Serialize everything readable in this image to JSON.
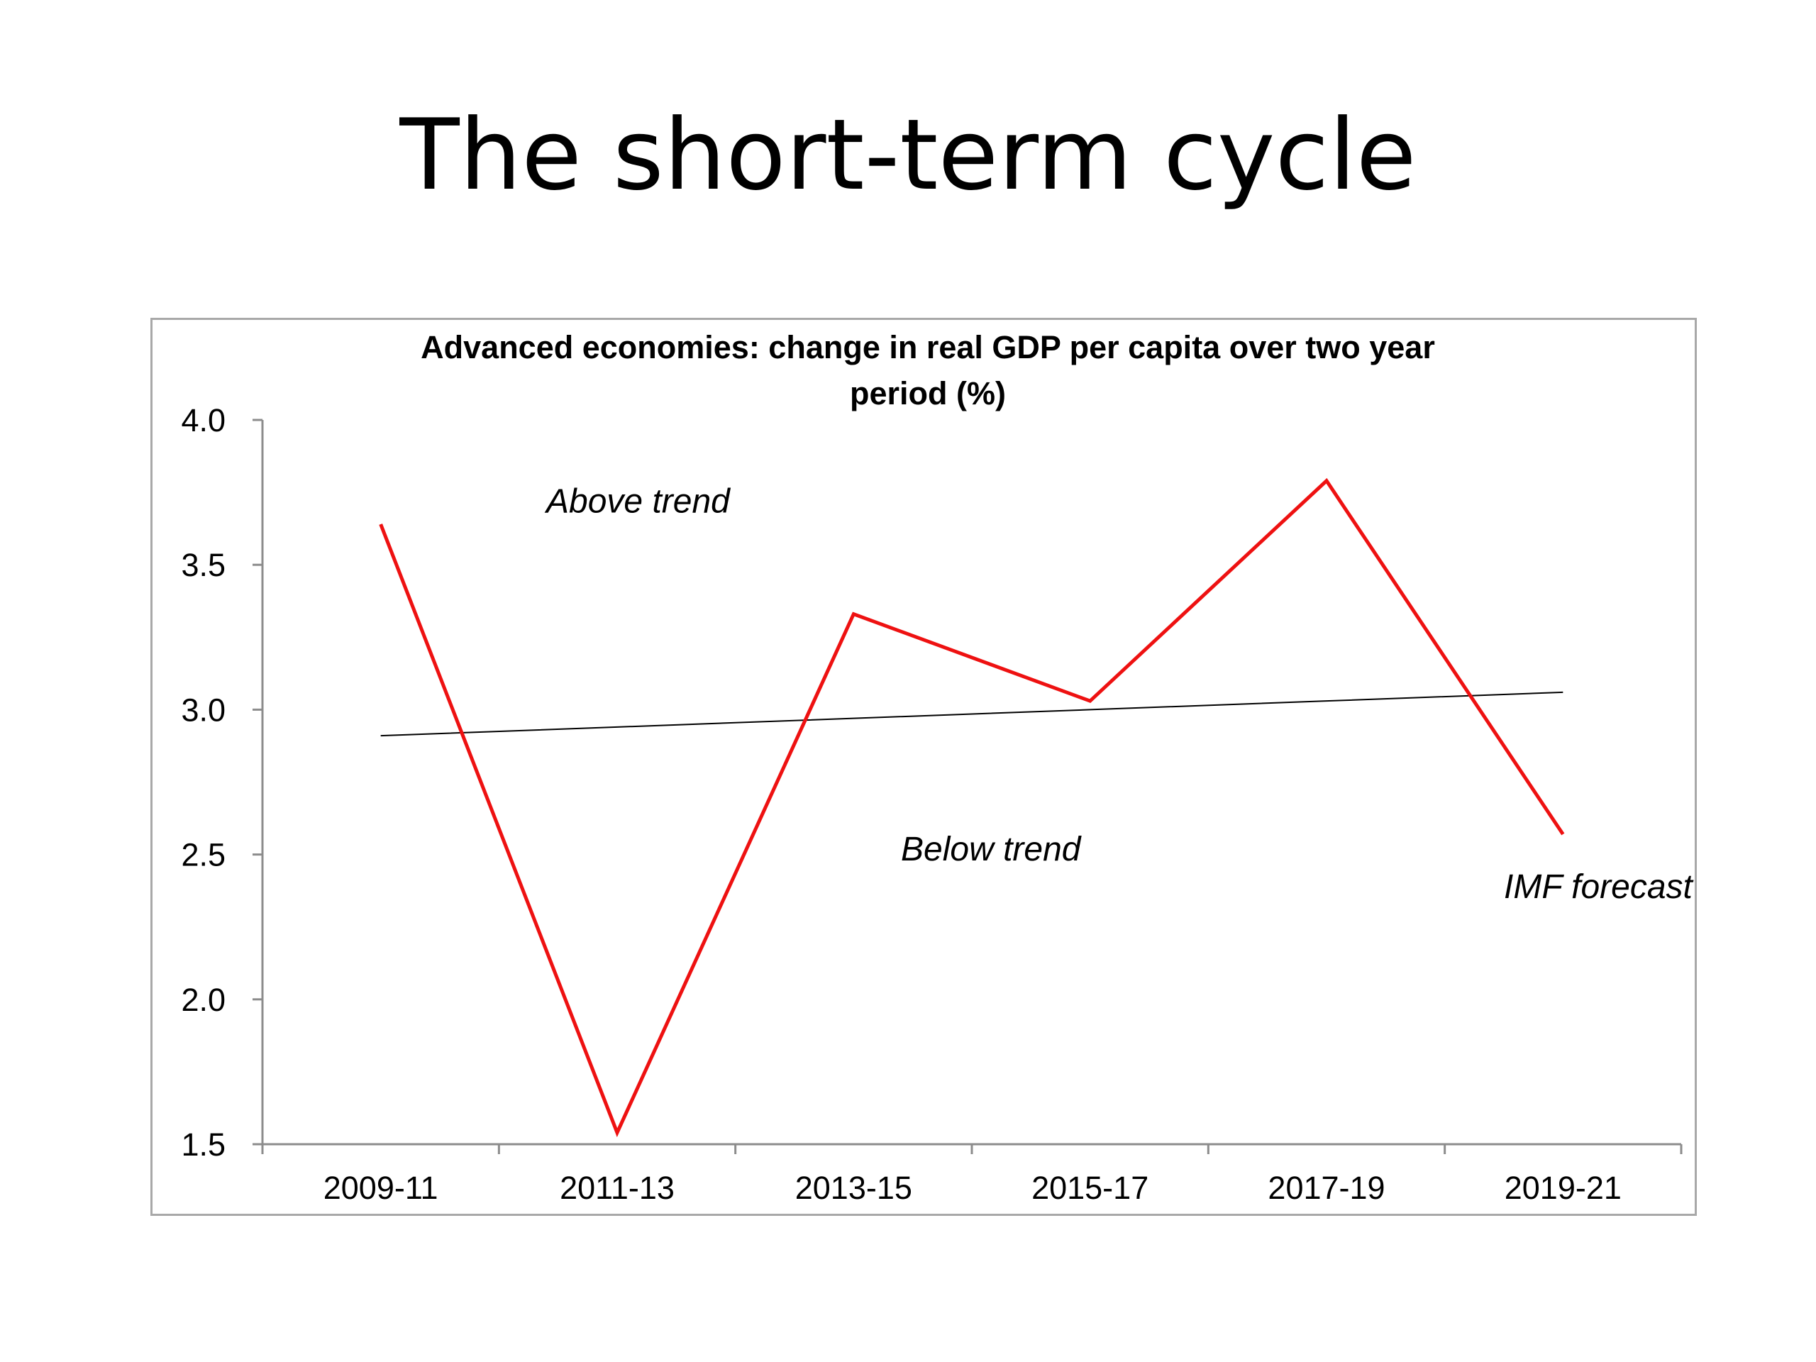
{
  "slide": {
    "title": "The short-term cycle"
  },
  "colors": {
    "series": "#ee1111",
    "trend": "#000000",
    "axis": "#8c8c8c",
    "frame": "#a8a8a8"
  },
  "chart_data": {
    "type": "line",
    "title_lines": [
      "Advanced economies: change in real GDP per capita over two year",
      "period (%)"
    ],
    "categories": [
      "2009-11",
      "2011-13",
      "2013-15",
      "2015-17",
      "2017-19",
      "2019-21"
    ],
    "series": [
      {
        "values": [
          3.64,
          1.54,
          3.33,
          3.03,
          3.79,
          2.57
        ]
      },
      {
        "values": [
          2.91,
          2.94,
          2.97,
          3.0,
          3.03,
          3.06
        ]
      }
    ],
    "ylim": [
      1.5,
      4.0
    ],
    "yticks": [
      "4.0",
      "3.5",
      "3.0",
      "2.5",
      "2.0",
      "1.5"
    ],
    "ytick_values": [
      4.0,
      3.5,
      3.0,
      2.5,
      2.0,
      1.5
    ],
    "grid": false,
    "annotations": [
      {
        "text": "Above trend",
        "x": 0.7,
        "y": 3.68
      },
      {
        "text": "Below trend",
        "x": 2.2,
        "y": 2.48
      },
      {
        "text": "IMF forecast",
        "x": 4.75,
        "y": 2.35
      }
    ]
  }
}
